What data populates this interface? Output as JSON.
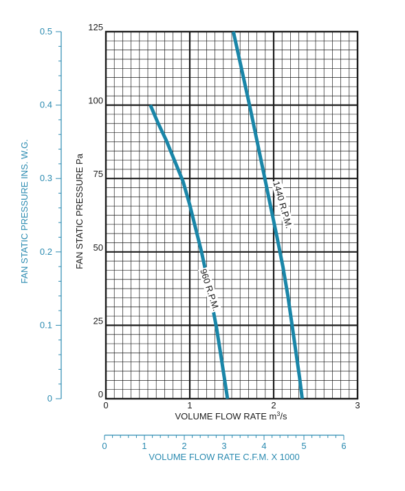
{
  "chart_data": {
    "type": "line",
    "title": "",
    "xlabel": "VOLUME FLOW RATE m³/s",
    "xlabel_parts": {
      "main": "VOLUME FLOW RATE m",
      "sup": "3",
      "tail": "/s"
    },
    "ylabel": "FAN STATIC PRESSURE Pa",
    "xlim": [
      0,
      3
    ],
    "ylim": [
      0,
      125
    ],
    "x_ticks": [
      "0",
      "1",
      "2",
      "3"
    ],
    "y_ticks": [
      "0",
      "25",
      "50",
      "75",
      "100",
      "125"
    ],
    "grid": true,
    "secondary_x": {
      "label": "VOLUME FLOW RATE C.F.M. X 1000",
      "range": [
        0,
        6
      ],
      "ticks": [
        "0",
        "1",
        "2",
        "3",
        "4",
        "5",
        "6"
      ]
    },
    "secondary_y": {
      "label": "FAN STATIC PRESSURE INS. W.G.",
      "range": [
        0,
        0.5
      ],
      "ticks": [
        "0",
        "0.1",
        "0.2",
        "0.3",
        "0.4",
        "0.5"
      ]
    },
    "series": [
      {
        "name": "960 R.P.M.",
        "color": "#1a86a8",
        "x": [
          0.53,
          0.62,
          0.72,
          0.82,
          0.92,
          1.0,
          1.07,
          1.14,
          1.2,
          1.26,
          1.32,
          1.38,
          1.45
        ],
        "y": [
          100,
          94,
          88,
          81,
          74,
          66,
          58,
          50,
          42,
          33,
          24,
          13,
          0
        ]
      },
      {
        "name": "1440 R.P.M.",
        "color": "#1a86a8",
        "x": [
          1.52,
          1.62,
          1.72,
          1.8,
          1.88,
          1.96,
          2.04,
          2.11,
          2.17,
          2.22,
          2.27,
          2.31,
          2.34
        ],
        "y": [
          125,
          112,
          99,
          88,
          77,
          66,
          55,
          45,
          35,
          25,
          15,
          7,
          0
        ]
      }
    ]
  }
}
